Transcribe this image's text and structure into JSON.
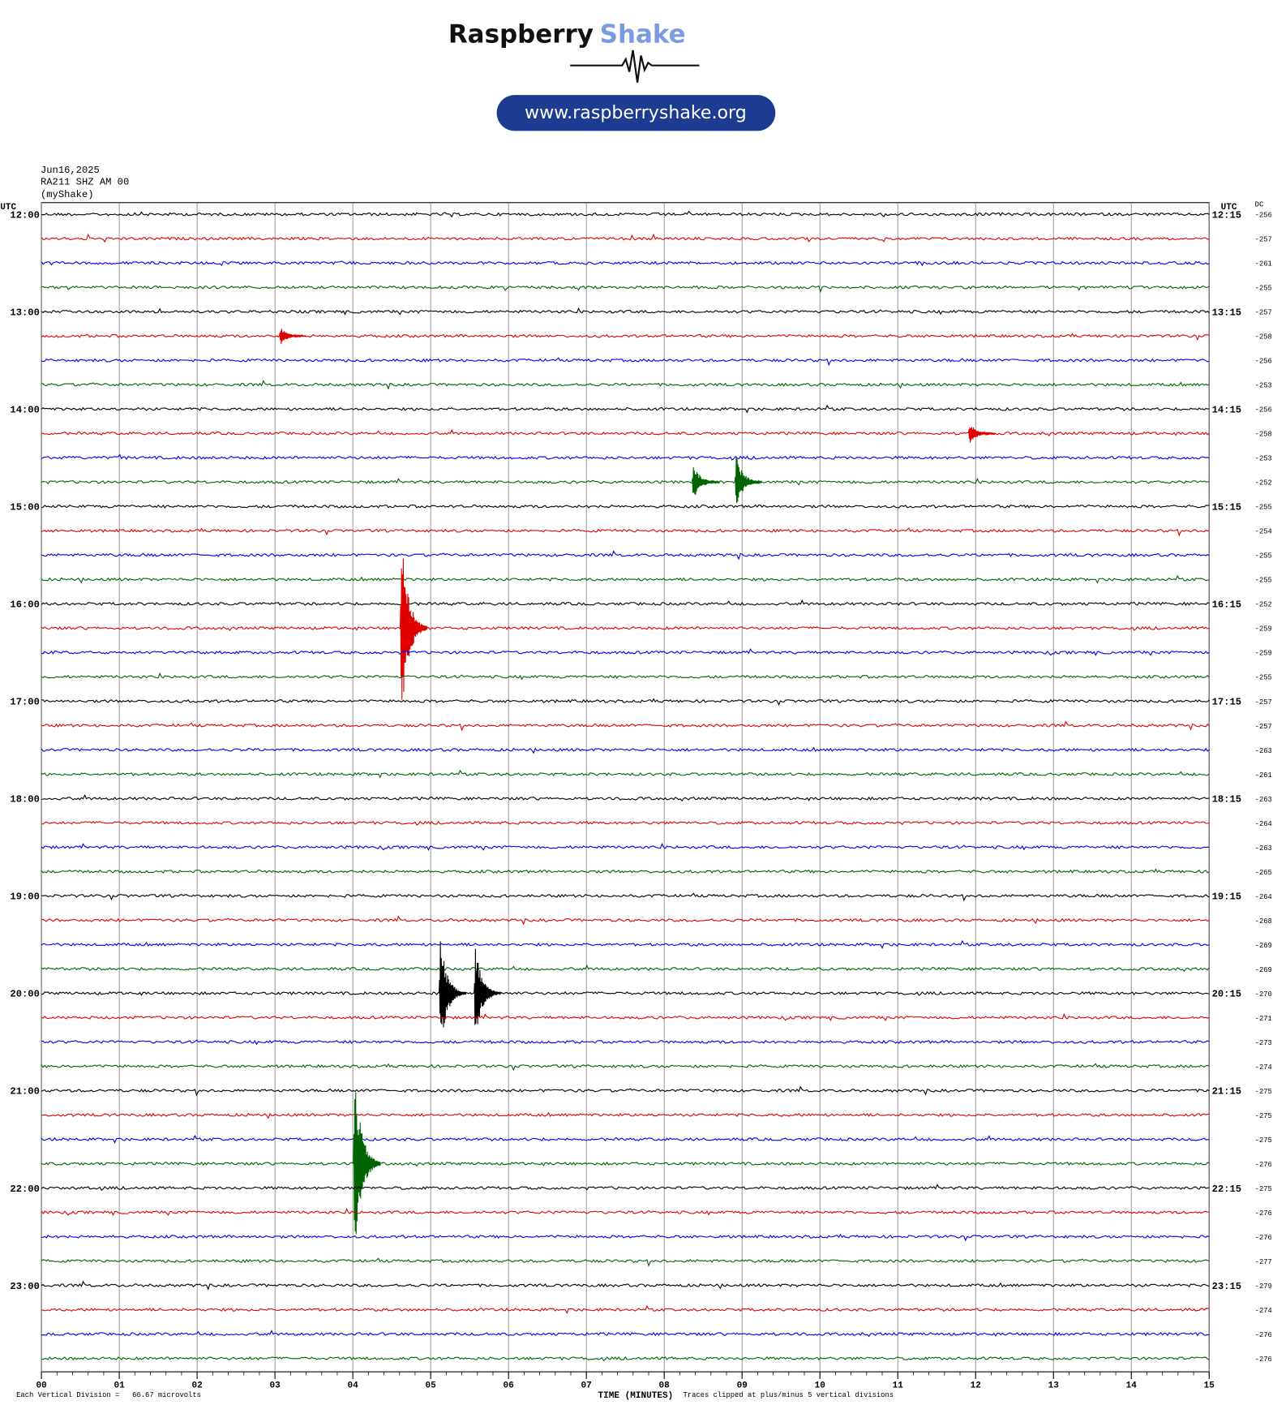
{
  "header": {
    "brand_1": "Raspberry",
    "brand_2": "Shake",
    "url": "www.raspberryshake.org"
  },
  "chart_data": {
    "type": "helicorder",
    "date": "Jun16,2025",
    "station": "RA211 SHZ AM 00",
    "source": "(myShake)",
    "left_axis_title": "UTC",
    "right_axis_title": "UTC",
    "dc_title": "DC",
    "left_labels": [
      "12:00",
      "13:00",
      "14:00",
      "15:00",
      "16:00",
      "17:00",
      "18:00",
      "19:00",
      "20:00",
      "21:00",
      "22:00",
      "23:00"
    ],
    "right_labels": [
      "12:15",
      "13:15",
      "14:15",
      "15:15",
      "16:15",
      "17:15",
      "18:15",
      "19:15",
      "20:15",
      "21:15",
      "22:15",
      "23:15"
    ],
    "colors": [
      "#000000",
      "#e00000",
      "#0000e0",
      "#006400"
    ],
    "rows": [
      {
        "dc": -256
      },
      {
        "dc": -257
      },
      {
        "dc": -261
      },
      {
        "dc": -255
      },
      {
        "dc": -257
      },
      {
        "dc": -258,
        "events": [
          {
            "minute": 3.15,
            "amplitude": 0.5
          }
        ]
      },
      {
        "dc": -256
      },
      {
        "dc": -253
      },
      {
        "dc": -256
      },
      {
        "dc": -258,
        "events": [
          {
            "minute": 12.0,
            "amplitude": 0.6
          }
        ]
      },
      {
        "dc": -253
      },
      {
        "dc": -252,
        "events": [
          {
            "minute": 8.45,
            "amplitude": 1.0
          },
          {
            "minute": 9.0,
            "amplitude": 1.5
          }
        ]
      },
      {
        "dc": -255
      },
      {
        "dc": -254
      },
      {
        "dc": -255
      },
      {
        "dc": -255
      },
      {
        "dc": -252
      },
      {
        "dc": -259,
        "events": [
          {
            "minute": 4.7,
            "amplitude": 5
          }
        ]
      },
      {
        "dc": -259
      },
      {
        "dc": -255
      },
      {
        "dc": -257
      },
      {
        "dc": -257
      },
      {
        "dc": -263
      },
      {
        "dc": -261
      },
      {
        "dc": -263
      },
      {
        "dc": -264
      },
      {
        "dc": -263
      },
      {
        "dc": -265
      },
      {
        "dc": -264
      },
      {
        "dc": -268
      },
      {
        "dc": -269
      },
      {
        "dc": -269
      },
      {
        "dc": -270,
        "events": [
          {
            "minute": 5.2,
            "amplitude": 3
          },
          {
            "minute": 5.65,
            "amplitude": 2.5
          }
        ]
      },
      {
        "dc": -271
      },
      {
        "dc": -273
      },
      {
        "dc": -274
      },
      {
        "dc": -275
      },
      {
        "dc": -275
      },
      {
        "dc": -275
      },
      {
        "dc": -276,
        "events": [
          {
            "minute": 4.1,
            "amplitude": 5
          }
        ]
      },
      {
        "dc": -275
      },
      {
        "dc": -276
      },
      {
        "dc": -276
      },
      {
        "dc": -277
      },
      {
        "dc": -279
      },
      {
        "dc": -274
      },
      {
        "dc": -276
      },
      {
        "dc": -276
      }
    ],
    "xlim": [
      0,
      15
    ],
    "xticks": [
      {
        "value": 0,
        "label": "00"
      },
      {
        "value": 1,
        "label": "01"
      },
      {
        "value": 2,
        "label": "02"
      },
      {
        "value": 3,
        "label": "03"
      },
      {
        "value": 4,
        "label": "04"
      },
      {
        "value": 5,
        "label": "05"
      },
      {
        "value": 6,
        "label": "06"
      },
      {
        "value": 7,
        "label": "07"
      },
      {
        "value": 8,
        "label": "08"
      },
      {
        "value": 9,
        "label": "09"
      },
      {
        "value": 10,
        "label": "10"
      },
      {
        "value": 11,
        "label": "11"
      },
      {
        "value": 12,
        "label": "12"
      },
      {
        "value": 13,
        "label": "13"
      },
      {
        "value": 14,
        "label": "14"
      },
      {
        "value": 15,
        "label": "15"
      }
    ],
    "grid": true,
    "xlabel": "TIME (MINUTES)",
    "scale_note": "Each Vertical Division =   66.67 microvolts",
    "clip_note": "Traces clipped at plus/minus 5 vertical divisions"
  }
}
